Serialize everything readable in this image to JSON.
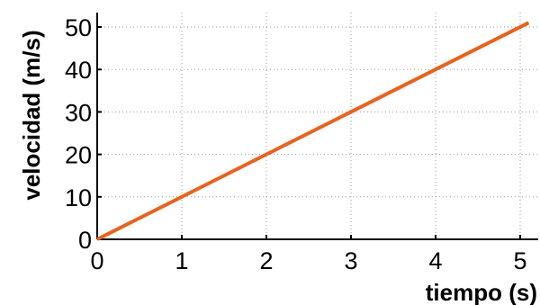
{
  "chart_data": {
    "type": "line",
    "title": "",
    "xlabel": "tiempo (s)",
    "ylabel": "velocidad (m/s)",
    "xlim": [
      0,
      5.1
    ],
    "ylim": [
      0,
      52
    ],
    "xticks": [
      0,
      1,
      2,
      3,
      4,
      5
    ],
    "yticks": [
      0,
      10,
      20,
      30,
      40,
      50
    ],
    "grid": true,
    "series": [
      {
        "color": "#e8621e",
        "x": [
          0,
          5.1
        ],
        "y": [
          0,
          51
        ]
      }
    ]
  }
}
